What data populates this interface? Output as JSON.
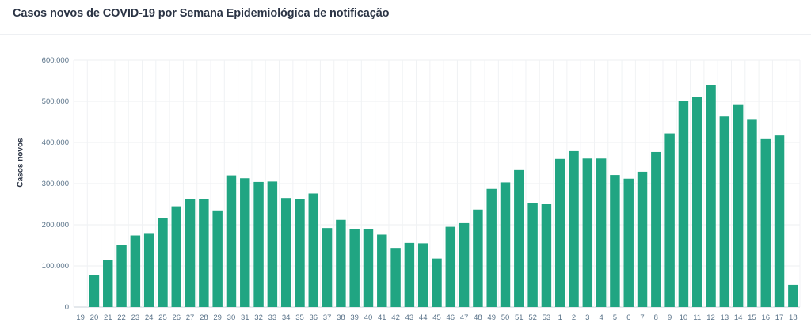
{
  "chart_data": {
    "type": "bar",
    "title": "Casos novos de COVID-19 por Semana Epidemiológica de notificação",
    "ylabel": "Casos novos",
    "xlabel": "",
    "ylim": [
      0,
      600000
    ],
    "yticks": [
      0,
      100000,
      200000,
      300000,
      400000,
      500000,
      600000
    ],
    "ytick_labels": [
      "0",
      "100.000",
      "200.000",
      "300.000",
      "400.000",
      "500.000",
      "600.000"
    ],
    "grid": true,
    "bar_color": "#20a582",
    "categories": [
      "19",
      "20",
      "21",
      "22",
      "23",
      "24",
      "25",
      "26",
      "27",
      "28",
      "29",
      "30",
      "31",
      "32",
      "33",
      "34",
      "35",
      "36",
      "37",
      "38",
      "39",
      "40",
      "41",
      "42",
      "43",
      "44",
      "45",
      "46",
      "47",
      "48",
      "49",
      "50",
      "51",
      "52",
      "53",
      "1",
      "2",
      "3",
      "4",
      "5",
      "6",
      "7",
      "8",
      "9",
      "10",
      "11",
      "12",
      "13",
      "14",
      "15",
      "16",
      "17",
      "18"
    ],
    "values": [
      0,
      77000,
      114000,
      150000,
      174000,
      178000,
      217000,
      245000,
      263000,
      262000,
      235000,
      320000,
      313000,
      304000,
      305000,
      265000,
      263000,
      276000,
      192000,
      212000,
      190000,
      189000,
      176000,
      142000,
      156000,
      155000,
      118000,
      195000,
      204000,
      237000,
      287000,
      303000,
      333000,
      252000,
      250000,
      360000,
      379000,
      361000,
      361000,
      321000,
      312000,
      329000,
      377000,
      422000,
      500000,
      510000,
      540000,
      463000,
      491000,
      455000,
      408000,
      417000,
      54000
    ]
  }
}
